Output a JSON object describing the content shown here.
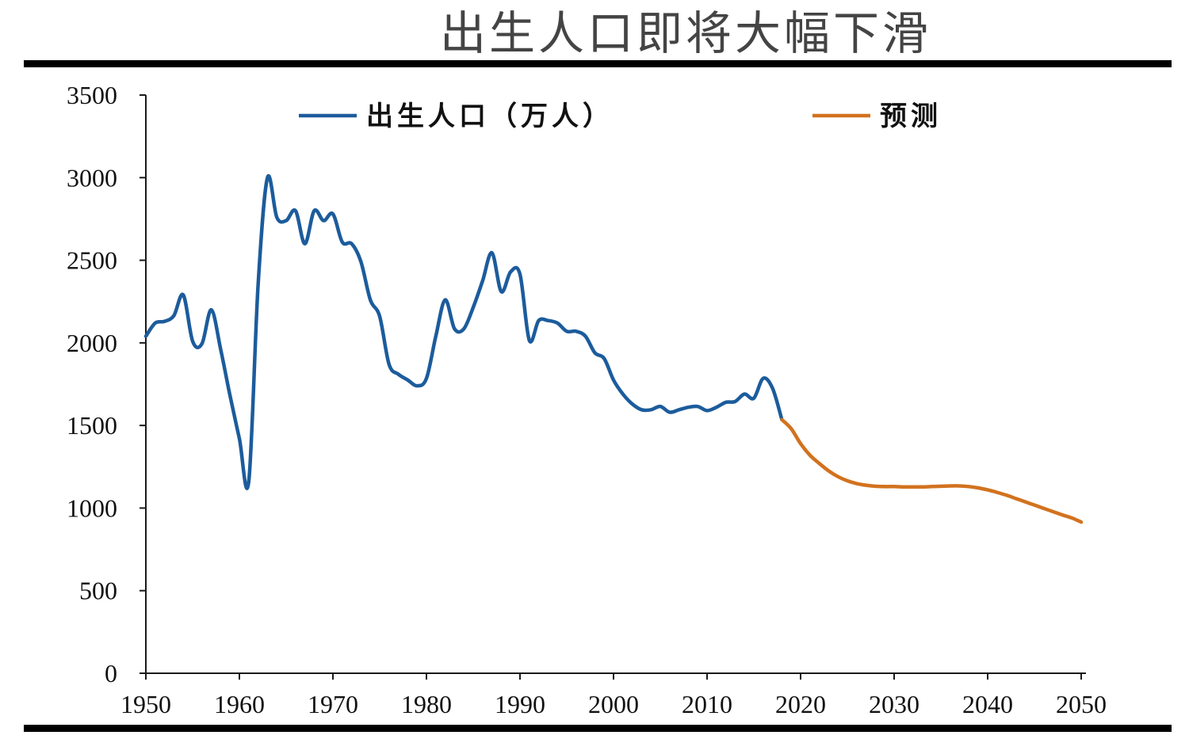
{
  "chart_data": {
    "type": "line",
    "title": "出生人口即将大幅下滑",
    "xlabel": "",
    "ylabel": "",
    "xlim": [
      1950,
      2050
    ],
    "ylim": [
      0,
      3500
    ],
    "x_ticks": [
      1950,
      1960,
      1970,
      1980,
      1990,
      2000,
      2010,
      2020,
      2030,
      2040,
      2050
    ],
    "y_ticks": [
      0,
      500,
      1000,
      1500,
      2000,
      2500,
      3000,
      3500
    ],
    "grid": false,
    "smooth": true,
    "legend_position": "top",
    "series": [
      {
        "name": "出生人口（万人）",
        "color": "#1c5c9c",
        "x": [
          1950,
          1951,
          1952,
          1953,
          1954,
          1955,
          1956,
          1957,
          1958,
          1959,
          1960,
          1961,
          1962,
          1963,
          1964,
          1965,
          1966,
          1967,
          1968,
          1969,
          1970,
          1971,
          1972,
          1973,
          1974,
          1975,
          1976,
          1977,
          1978,
          1979,
          1980,
          1981,
          1982,
          1983,
          1984,
          1985,
          1986,
          1987,
          1988,
          1989,
          1990,
          1991,
          1992,
          1993,
          1994,
          1995,
          1996,
          1997,
          1998,
          1999,
          2000,
          2001,
          2002,
          2003,
          2004,
          2005,
          2006,
          2007,
          2008,
          2009,
          2010,
          2011,
          2012,
          2013,
          2014,
          2015,
          2016,
          2017,
          2018
        ],
        "y": [
          2040,
          2120,
          2130,
          2165,
          2290,
          2010,
          1995,
          2200,
          1960,
          1680,
          1420,
          1160,
          2350,
          3000,
          2760,
          2740,
          2800,
          2600,
          2800,
          2740,
          2780,
          2610,
          2600,
          2490,
          2260,
          2160,
          1870,
          1810,
          1775,
          1740,
          1785,
          2040,
          2260,
          2085,
          2085,
          2215,
          2375,
          2545,
          2310,
          2430,
          2415,
          2015,
          2135,
          2135,
          2120,
          2070,
          2070,
          2040,
          1940,
          1905,
          1775,
          1690,
          1630,
          1595,
          1595,
          1615,
          1580,
          1595,
          1610,
          1615,
          1590,
          1610,
          1640,
          1645,
          1690,
          1665,
          1785,
          1725,
          1535
        ]
      },
      {
        "name": "预测",
        "color": "#d2721f",
        "x": [
          2018,
          2019,
          2020,
          2021,
          2022,
          2023,
          2024,
          2025,
          2026,
          2027,
          2028,
          2029,
          2030,
          2031,
          2032,
          2033,
          2034,
          2035,
          2036,
          2037,
          2038,
          2039,
          2040,
          2041,
          2042,
          2043,
          2044,
          2045,
          2046,
          2047,
          2048,
          2049,
          2050
        ],
        "y": [
          1535,
          1480,
          1390,
          1320,
          1270,
          1225,
          1190,
          1165,
          1148,
          1138,
          1132,
          1130,
          1130,
          1128,
          1128,
          1128,
          1130,
          1132,
          1134,
          1134,
          1130,
          1122,
          1110,
          1095,
          1078,
          1058,
          1038,
          1018,
          998,
          978,
          958,
          940,
          915
        ]
      }
    ]
  }
}
